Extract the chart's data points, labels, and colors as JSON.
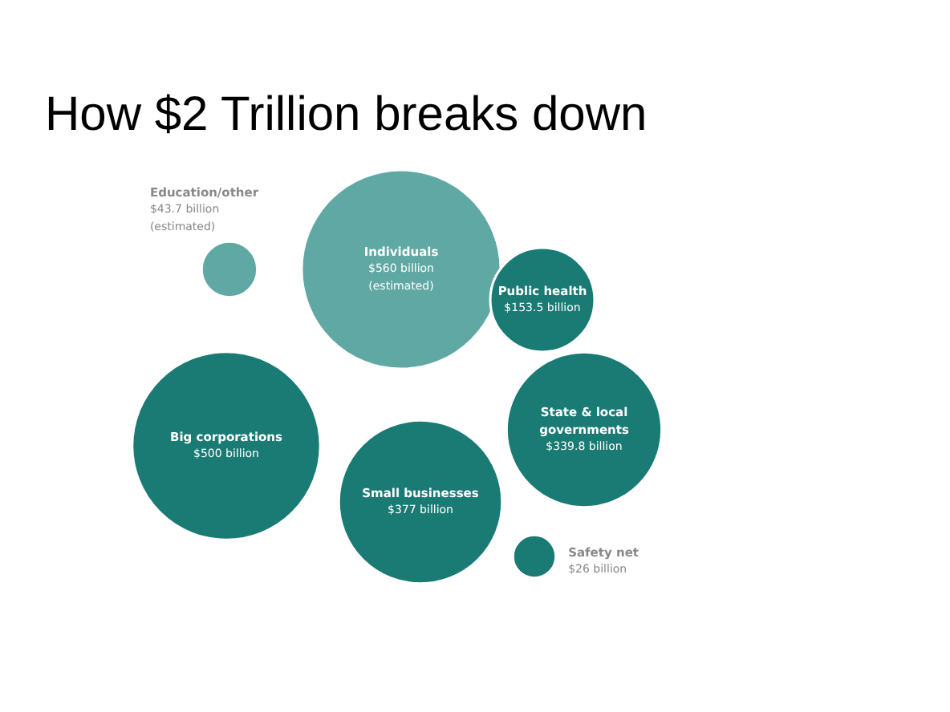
{
  "chart_data": {
    "type": "other",
    "title": "How $2 Trillion breaks down",
    "categories": [
      "Education/other",
      "Individuals",
      "Public health",
      "Big corporations",
      "State & local governments",
      "Small businesses",
      "Safety net"
    ],
    "values": [
      43.7,
      560,
      153.5,
      500,
      339.8,
      377,
      26
    ],
    "value_labels": [
      "$43.7 billion\n(estimated)",
      "$560 billion\n(estimated)",
      "$153.5 billion",
      "$500 billion",
      "$339.8 billion",
      "$377 billion",
      "$26 billion"
    ],
    "colors": [
      "#5fa8a3",
      "#5fa8a3",
      "#1a7a74",
      "#1a7a74",
      "#1a7a74",
      "#1a7a74",
      "#1a7a74"
    ]
  }
}
